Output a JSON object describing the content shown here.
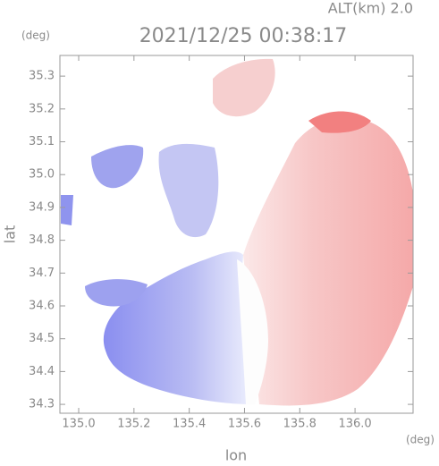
{
  "chart_data": {
    "type": "radar",
    "altitude_label": "ALT(km) 2.0",
    "title": "2021/12/25 00:38:17",
    "y_unit": "(deg)",
    "x_unit": "(deg)",
    "ylabel": "lat",
    "xlabel": "lon",
    "xlim": [
      134.932,
      136.21
    ],
    "ylim": [
      34.273,
      35.363
    ],
    "xticks": [
      {
        "value": 135,
        "label": "135.0"
      },
      135.2,
      135.4,
      135.6,
      135.8,
      {
        "value": 136,
        "label": "136.0"
      }
    ],
    "yticks": [
      34.3,
      34.4,
      34.5,
      34.6,
      34.7,
      34.8,
      34.9,
      {
        "value": 35,
        "label": "35.0"
      },
      35.1,
      35.2,
      35.3
    ]
  }
}
